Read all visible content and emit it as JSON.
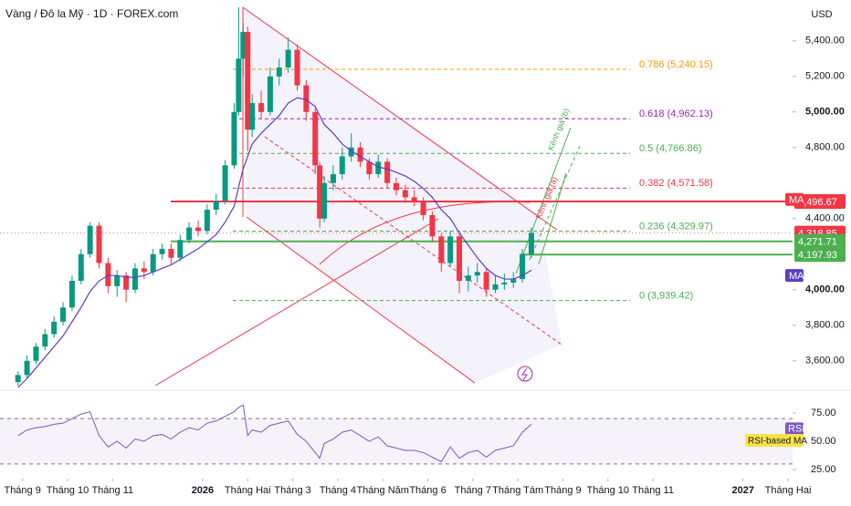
{
  "chart_data": {
    "type": "candlestick",
    "title": "Vàng / Đô la Mỹ · 1D · FOREX.com",
    "currency": "USD",
    "xlim": [
      -0.5,
      17.1
    ],
    "xticks": [
      {
        "value": 0,
        "label": "Tháng 9"
      },
      {
        "value": 1,
        "label": "Tháng 10"
      },
      {
        "value": 2,
        "label": "Tháng 11"
      },
      {
        "value": 4,
        "label": "2026"
      },
      {
        "value": 5,
        "label": "Tháng Hai"
      },
      {
        "value": 6,
        "label": "Tháng 3"
      },
      {
        "value": 7,
        "label": "Tháng 4"
      },
      {
        "value": 8,
        "label": "Tháng Năm"
      },
      {
        "value": 9,
        "label": "Tháng 6"
      },
      {
        "value": 10,
        "label": "Tháng 7"
      },
      {
        "value": 11,
        "label": "Tháng Tám"
      },
      {
        "value": 12,
        "label": "Tháng 9"
      },
      {
        "value": 13,
        "label": "Tháng 10"
      },
      {
        "value": 14,
        "label": "Tháng 11"
      },
      {
        "value": 16,
        "label": "2027"
      },
      {
        "value": 17,
        "label": "Tháng Hai"
      }
    ],
    "ylim": [
      3450,
      5630
    ],
    "yticks": [
      {
        "value": 3600,
        "label": "3,600.00"
      },
      {
        "value": 3800,
        "label": "3,800.00"
      },
      {
        "value": 4000,
        "label": "4,000.00"
      },
      {
        "value": 4400,
        "label": "4,400.00"
      },
      {
        "value": 4800,
        "label": "4,800.00"
      },
      {
        "value": 5000,
        "label": "5,000.00"
      },
      {
        "value": 5200,
        "label": "5,200.00"
      },
      {
        "value": 5400,
        "label": "5,400.00"
      }
    ],
    "up_color": "#089981",
    "down_color": "#f23645",
    "candles": [
      {
        "x": -0.1,
        "o": 3480,
        "h": 3540,
        "l": 3460,
        "c": 3520
      },
      {
        "x": 0.1,
        "o": 3520,
        "h": 3630,
        "l": 3500,
        "c": 3600
      },
      {
        "x": 0.3,
        "o": 3600,
        "h": 3700,
        "l": 3580,
        "c": 3680
      },
      {
        "x": 0.5,
        "o": 3680,
        "h": 3780,
        "l": 3660,
        "c": 3750
      },
      {
        "x": 0.7,
        "o": 3750,
        "h": 3850,
        "l": 3730,
        "c": 3820
      },
      {
        "x": 0.9,
        "o": 3820,
        "h": 3930,
        "l": 3800,
        "c": 3900
      },
      {
        "x": 1.1,
        "o": 3900,
        "h": 4080,
        "l": 3880,
        "c": 4050
      },
      {
        "x": 1.3,
        "o": 4050,
        "h": 4230,
        "l": 4030,
        "c": 4200
      },
      {
        "x": 1.5,
        "o": 4200,
        "h": 4380,
        "l": 4180,
        "c": 4360
      },
      {
        "x": 1.7,
        "o": 4360,
        "h": 4380,
        "l": 4120,
        "c": 4150
      },
      {
        "x": 1.9,
        "o": 4150,
        "h": 4180,
        "l": 3980,
        "c": 4020
      },
      {
        "x": 2.1,
        "o": 4020,
        "h": 4110,
        "l": 3960,
        "c": 4080
      },
      {
        "x": 2.3,
        "o": 4080,
        "h": 4100,
        "l": 3930,
        "c": 4000
      },
      {
        "x": 2.5,
        "o": 4000,
        "h": 4150,
        "l": 3980,
        "c": 4120
      },
      {
        "x": 2.7,
        "o": 4120,
        "h": 4160,
        "l": 4060,
        "c": 4100
      },
      {
        "x": 2.9,
        "o": 4100,
        "h": 4230,
        "l": 4080,
        "c": 4200
      },
      {
        "x": 3.1,
        "o": 4200,
        "h": 4260,
        "l": 4170,
        "c": 4230
      },
      {
        "x": 3.3,
        "o": 4230,
        "h": 4260,
        "l": 4140,
        "c": 4180
      },
      {
        "x": 3.5,
        "o": 4180,
        "h": 4310,
        "l": 4160,
        "c": 4280
      },
      {
        "x": 3.7,
        "o": 4280,
        "h": 4380,
        "l": 4260,
        "c": 4350
      },
      {
        "x": 3.9,
        "o": 4350,
        "h": 4390,
        "l": 4300,
        "c": 4330
      },
      {
        "x": 4.1,
        "o": 4330,
        "h": 4480,
        "l": 4310,
        "c": 4450
      },
      {
        "x": 4.3,
        "o": 4450,
        "h": 4540,
        "l": 4420,
        "c": 4500
      },
      {
        "x": 4.5,
        "o": 4500,
        "h": 4730,
        "l": 4480,
        "c": 4700
      },
      {
        "x": 4.7,
        "o": 4700,
        "h": 5050,
        "l": 4680,
        "c": 5000
      },
      {
        "x": 4.8,
        "o": 5000,
        "h": 5590,
        "l": 4980,
        "c": 5300
      },
      {
        "x": 4.9,
        "o": 5300,
        "h": 5500,
        "l": 5200,
        "c": 5450
      },
      {
        "x": 5.0,
        "o": 5450,
        "h": 5480,
        "l": 4780,
        "c": 4900
      },
      {
        "x": 5.1,
        "o": 4900,
        "h": 5100,
        "l": 4860,
        "c": 5050
      },
      {
        "x": 5.3,
        "o": 5050,
        "h": 5120,
        "l": 4960,
        "c": 5000
      },
      {
        "x": 5.5,
        "o": 5000,
        "h": 5250,
        "l": 4980,
        "c": 5200
      },
      {
        "x": 5.7,
        "o": 5200,
        "h": 5300,
        "l": 5150,
        "c": 5250
      },
      {
        "x": 5.9,
        "o": 5250,
        "h": 5420,
        "l": 5220,
        "c": 5350
      },
      {
        "x": 6.1,
        "o": 5350,
        "h": 5380,
        "l": 5120,
        "c": 5150
      },
      {
        "x": 6.3,
        "o": 5150,
        "h": 5180,
        "l": 4950,
        "c": 5000
      },
      {
        "x": 6.5,
        "o": 5000,
        "h": 5020,
        "l": 4650,
        "c": 4700
      },
      {
        "x": 6.6,
        "o": 4700,
        "h": 4720,
        "l": 4350,
        "c": 4400
      },
      {
        "x": 6.7,
        "o": 4400,
        "h": 4640,
        "l": 4380,
        "c": 4600
      },
      {
        "x": 6.9,
        "o": 4600,
        "h": 4700,
        "l": 4560,
        "c": 4650
      },
      {
        "x": 7.1,
        "o": 4650,
        "h": 4800,
        "l": 4620,
        "c": 4750
      },
      {
        "x": 7.3,
        "o": 4750,
        "h": 4880,
        "l": 4720,
        "c": 4800
      },
      {
        "x": 7.5,
        "o": 4800,
        "h": 4830,
        "l": 4690,
        "c": 4720
      },
      {
        "x": 7.7,
        "o": 4720,
        "h": 4740,
        "l": 4620,
        "c": 4650
      },
      {
        "x": 7.9,
        "o": 4650,
        "h": 4760,
        "l": 4630,
        "c": 4720
      },
      {
        "x": 8.1,
        "o": 4720,
        "h": 4740,
        "l": 4570,
        "c": 4600
      },
      {
        "x": 8.3,
        "o": 4600,
        "h": 4630,
        "l": 4530,
        "c": 4560
      },
      {
        "x": 8.5,
        "o": 4560,
        "h": 4590,
        "l": 4490,
        "c": 4520
      },
      {
        "x": 8.7,
        "o": 4520,
        "h": 4560,
        "l": 4470,
        "c": 4500
      },
      {
        "x": 8.9,
        "o": 4500,
        "h": 4520,
        "l": 4390,
        "c": 4420
      },
      {
        "x": 9.1,
        "o": 4420,
        "h": 4440,
        "l": 4270,
        "c": 4300
      },
      {
        "x": 9.3,
        "o": 4300,
        "h": 4320,
        "l": 4100,
        "c": 4150
      },
      {
        "x": 9.5,
        "o": 4150,
        "h": 4330,
        "l": 4130,
        "c": 4300
      },
      {
        "x": 9.7,
        "o": 4300,
        "h": 4320,
        "l": 3980,
        "c": 4050
      },
      {
        "x": 9.9,
        "o": 4050,
        "h": 4130,
        "l": 3990,
        "c": 4080
      },
      {
        "x": 10.1,
        "o": 4080,
        "h": 4150,
        "l": 4040,
        "c": 4100
      },
      {
        "x": 10.3,
        "o": 4100,
        "h": 4120,
        "l": 3960,
        "c": 4000
      },
      {
        "x": 10.5,
        "o": 4000,
        "h": 4080,
        "l": 3980,
        "c": 4030
      },
      {
        "x": 10.7,
        "o": 4030,
        "h": 4090,
        "l": 4000,
        "c": 4040
      },
      {
        "x": 10.9,
        "o": 4040,
        "h": 4100,
        "l": 4010,
        "c": 4060
      },
      {
        "x": 11.1,
        "o": 4060,
        "h": 4230,
        "l": 4040,
        "c": 4200
      },
      {
        "x": 11.3,
        "o": 4200,
        "h": 4350,
        "l": 4180,
        "c": 4320
      }
    ],
    "ma": {
      "color": "#5b3ec8",
      "values": [
        3450,
        3500,
        3560,
        3620,
        3680,
        3740,
        3820,
        3900,
        3990,
        4050,
        4080,
        4080,
        4070,
        4070,
        4080,
        4100,
        4120,
        4140,
        4170,
        4200,
        4230,
        4270,
        4310,
        4380,
        4470,
        4580,
        4680,
        4750,
        4820,
        4880,
        4930,
        4980,
        5050,
        5080,
        5070,
        5030,
        4980,
        4930,
        4880,
        4820,
        4780,
        4750,
        4720,
        4690,
        4680,
        4660,
        4640,
        4610,
        4570,
        4520,
        4450,
        4400,
        4320,
        4250,
        4180,
        4120,
        4080,
        4060,
        4060,
        4080,
        4110
      ]
    },
    "fib_levels": [
      {
        "label": "0.786 (5,240.15)",
        "value": 5240.15,
        "color": "#ff9800"
      },
      {
        "label": "0.618 (4,962.13)",
        "value": 4962.13,
        "color": "#9c27b0"
      },
      {
        "label": "0.5 (4,766.86)",
        "value": 4766.86,
        "color": "#4caf50"
      },
      {
        "label": "0.382 (4,571.58)",
        "value": 4571.58,
        "color": "#f23645"
      },
      {
        "label": "0.236 (4,329.97)",
        "value": 4329.97,
        "color": "#4caf50"
      },
      {
        "label": "0 (3,939.42)",
        "value": 3939.42,
        "color": "#4caf50"
      }
    ],
    "price_tags": [
      {
        "label": "4,496.67",
        "value": 4496.67,
        "color": "#f23645"
      },
      {
        "label": "4,318.85",
        "value": 4318.85,
        "color": "#f23645"
      },
      {
        "label": "4,271.71",
        "value": 4271.71,
        "color": "#4caf50"
      },
      {
        "label": "4,197.93",
        "value": 4197.93,
        "color": "#4caf50"
      }
    ],
    "ma_tags": [
      {
        "label": "MA",
        "value": 4508,
        "color": "#f23645"
      },
      {
        "label": "MA",
        "value": 4080,
        "color": "#5b3ec8"
      }
    ],
    "annotations": [
      {
        "label": "Kênh giá (b)",
        "color": "#4caf50"
      },
      {
        "label": "Kênh giá (a)",
        "color": "#f23645"
      }
    ],
    "rsi": {
      "ylim": [
        17,
        93.5
      ],
      "yticks": [
        {
          "value": 25,
          "label": "25.00"
        },
        {
          "value": 50,
          "label": "50.00"
        },
        {
          "value": 75,
          "label": "75.00"
        }
      ],
      "bands": [
        30,
        70
      ],
      "color": "#7e57c2",
      "label": "RSI",
      "ma_label": "RSI-based MA",
      "values": [
        55,
        60,
        62,
        63,
        65,
        66,
        70,
        74,
        76,
        55,
        45,
        50,
        44,
        52,
        50,
        55,
        56,
        52,
        58,
        62,
        60,
        66,
        68,
        72,
        76,
        80,
        82,
        55,
        60,
        58,
        64,
        66,
        68,
        56,
        50,
        40,
        35,
        48,
        52,
        58,
        60,
        55,
        50,
        54,
        46,
        44,
        42,
        42,
        40,
        36,
        32,
        45,
        35,
        40,
        42,
        36,
        42,
        44,
        46,
        58,
        65
      ]
    }
  }
}
